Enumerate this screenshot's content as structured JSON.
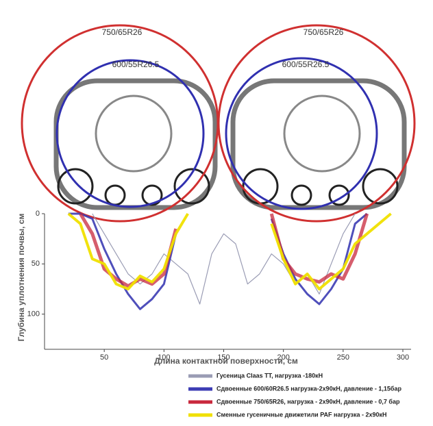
{
  "chart_data": {
    "type": "line",
    "annotations": [
      "750/65R26",
      "600/55R26.5",
      "750/65R26",
      "600/55R26.5"
    ],
    "x_label": "Длина контактной поверхности, см",
    "y_label": "Глубина уплотнения почвы, см",
    "x": [
      20,
      30,
      40,
      50,
      60,
      70,
      80,
      90,
      100,
      110,
      120,
      130,
      140,
      150,
      160,
      170,
      180,
      190,
      200,
      210,
      220,
      230,
      240,
      250,
      260,
      270,
      280,
      290
    ],
    "xlim": [
      0,
      300
    ],
    "xticks": [
      50,
      100,
      150,
      200,
      250,
      300
    ],
    "ylim": [
      0,
      135
    ],
    "yticks": [
      0,
      50,
      100
    ],
    "y_inverted": true,
    "series": [
      {
        "name": "Гусеница Claas TT, нагрузка -180кН",
        "color": "#9a9cb4",
        "values": [
          null,
          null,
          0,
          20,
          40,
          60,
          70,
          60,
          40,
          50,
          60,
          90,
          40,
          20,
          30,
          70,
          60,
          40,
          50,
          70,
          60,
          80,
          50,
          20,
          0,
          null,
          null,
          null
        ]
      },
      {
        "name": "Сдвоенные 600/60R26.5 нагрузка-2х90кН, давление - 1,15бар",
        "color": "#3c3cb4",
        "values": [
          0,
          0,
          5,
          35,
          60,
          80,
          95,
          85,
          70,
          20,
          null,
          null,
          null,
          null,
          null,
          null,
          null,
          5,
          40,
          65,
          80,
          90,
          75,
          55,
          10,
          0,
          null,
          null
        ]
      },
      {
        "name": "Сдвоенные 750/65R26, нагрузка - 2х90кН, давление - 0,7 бар",
        "color": "#c8283c",
        "values": [
          null,
          0,
          20,
          55,
          65,
          72,
          65,
          70,
          60,
          15,
          null,
          null,
          null,
          null,
          null,
          null,
          null,
          0,
          45,
          60,
          65,
          68,
          60,
          65,
          40,
          0,
          null,
          null
        ]
      },
      {
        "name": "Сменные гусеничные движетили PAF нагрузка - 2х90кН",
        "color": "#f0e000",
        "values": [
          0,
          10,
          45,
          50,
          70,
          75,
          62,
          68,
          55,
          20,
          0,
          null,
          null,
          null,
          null,
          null,
          null,
          10,
          45,
          70,
          60,
          75,
          65,
          55,
          30,
          20,
          10,
          0
        ]
      }
    ]
  }
}
